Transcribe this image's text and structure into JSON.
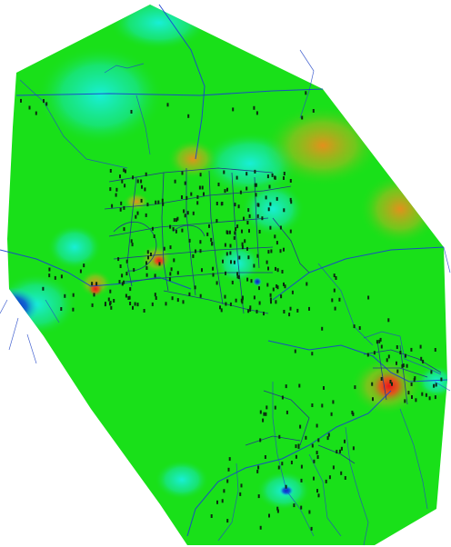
{
  "map": {
    "colors": {
      "background": "#ffffff",
      "base_surface": "#19e019",
      "low_value": "#0a14c8",
      "cyan": "#18f0e0",
      "orange": "#ee8c1c",
      "red": "#e8141c",
      "roads": "#1a3fd0",
      "nodes": "#0b2a10"
    },
    "layers": [
      "interpolated-surface",
      "road-network",
      "sample-nodes"
    ]
  }
}
